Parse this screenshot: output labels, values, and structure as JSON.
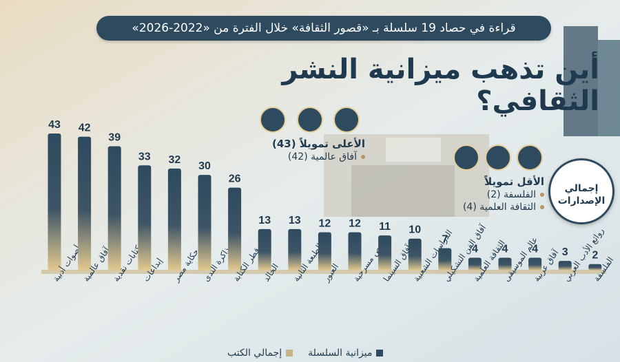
{
  "header": {
    "subtitle": "قراءة في حصاد 19 سلسلة بـ «قصور الثقافة» خلال الفترة من «2022-2026»",
    "title": "أين تذهب ميزانية النشر الثقافي؟"
  },
  "highest": {
    "heading": "الأعلى تمويلاً (43)",
    "items": [
      "آفاق عالمية (42)"
    ]
  },
  "lowest": {
    "heading": "الأقل تمويلاً",
    "items": [
      "الفلسفة (2)",
      "الثقافة العلمية (4)"
    ]
  },
  "badge": {
    "line1": "إجمالي",
    "line2": "الإصدارات"
  },
  "legend": {
    "series": "ميزانية السلسلة",
    "total": "إجمالي الكتب"
  },
  "colors": {
    "bar_top": "#2e4a5e",
    "bar_bottom": "#e3c98f",
    "text": "#1f3a4f",
    "accent": "#b7955c"
  },
  "chart_data": {
    "type": "bar",
    "categories": [
      "أصوات أدبية",
      "آفاق عالمية",
      "كتابات نقدية",
      "إبداعات",
      "حكاية مصر",
      "ذاكرة الندى",
      "قطر الكتابة",
      "الخالد",
      "الطبعة الثانية",
      "العبور",
      "نصوص مسرحية",
      "آفاق السينما",
      "الدراسات الشعبية",
      "آفاق الفن التشكيلي",
      "الثقافة العلمية",
      "عالم الموسيقى",
      "آفاق عربية",
      "روائع الأدب العربي",
      "الفلسفة"
    ],
    "values": [
      43,
      42,
      39,
      33,
      32,
      30,
      26,
      13,
      13,
      12,
      12,
      11,
      10,
      7,
      4,
      4,
      4,
      3,
      2
    ],
    "ylim": [
      0,
      43
    ]
  }
}
